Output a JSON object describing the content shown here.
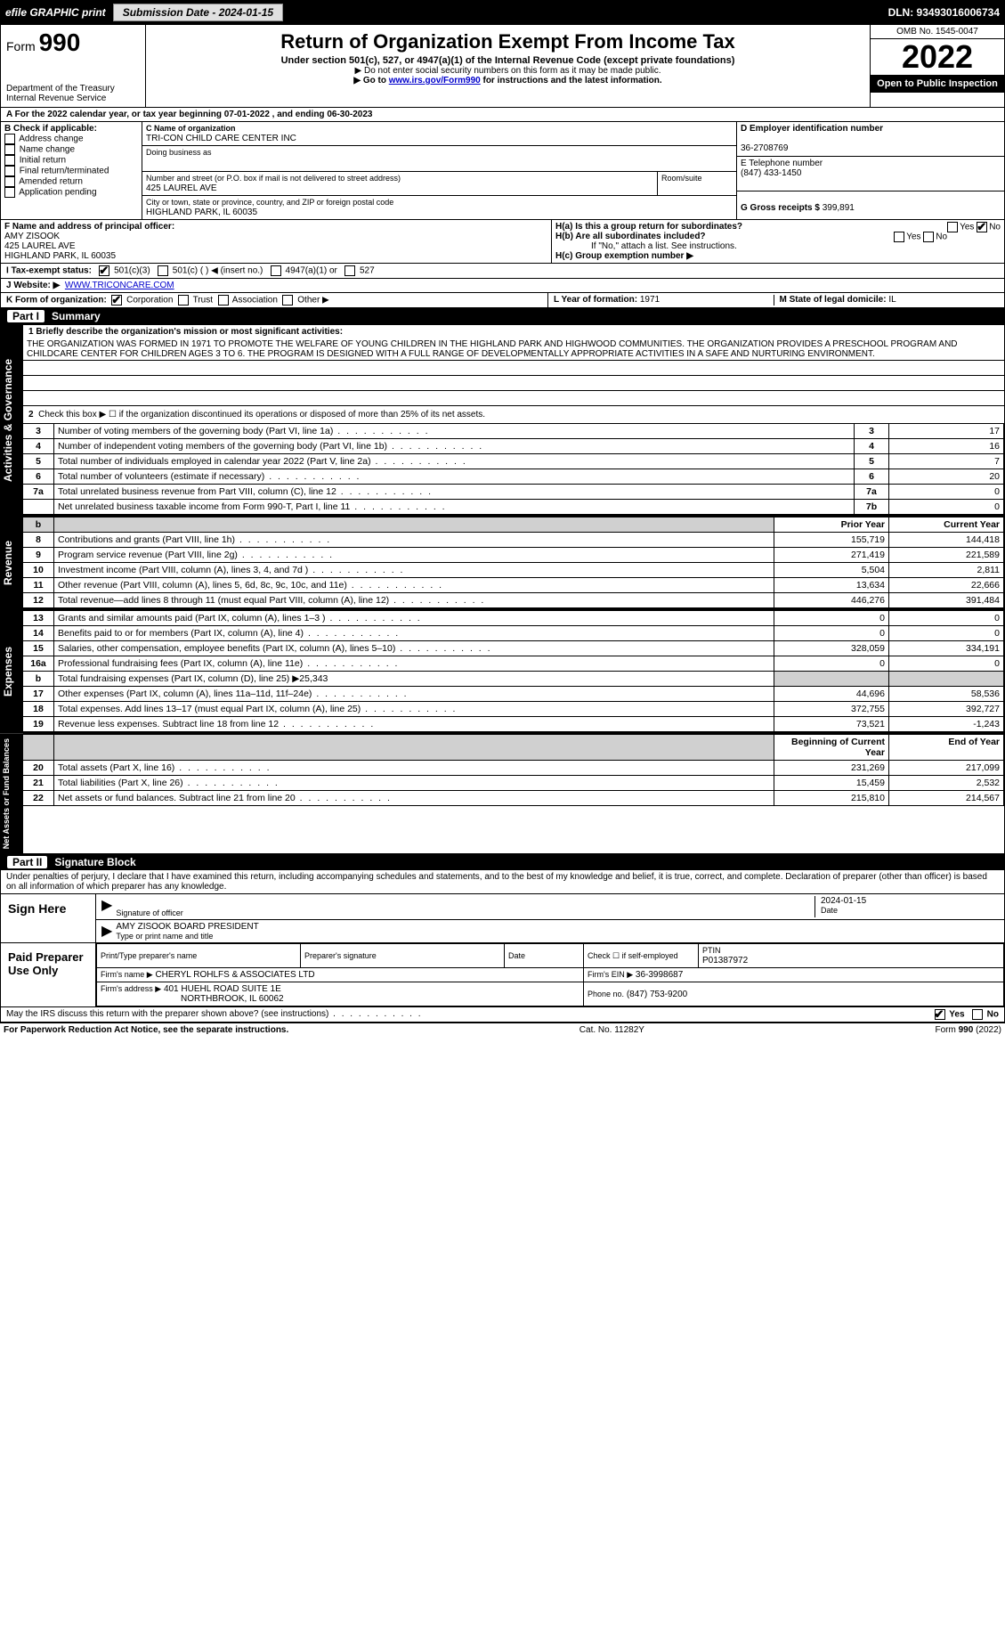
{
  "topbar": {
    "efile_label": "efile GRAPHIC print",
    "submission_label": "Submission Date - 2024-01-15",
    "dln_label": "DLN: 93493016006734"
  },
  "header": {
    "form_label": "Form",
    "form_number": "990",
    "dept": "Department of the Treasury",
    "irs": "Internal Revenue Service",
    "title": "Return of Organization Exempt From Income Tax",
    "subtitle": "Under section 501(c), 527, or 4947(a)(1) of the Internal Revenue Code (except private foundations)",
    "note1": "▶ Do not enter social security numbers on this form as it may be made public.",
    "note2_pre": "▶ Go to ",
    "note2_link": "www.irs.gov/Form990",
    "note2_post": " for instructions and the latest information.",
    "omb": "OMB No. 1545-0047",
    "year": "2022",
    "open": "Open to Public Inspection"
  },
  "period": {
    "line": "A For the 2022 calendar year, or tax year beginning 07-01-2022    , and ending 06-30-2023"
  },
  "blockB": {
    "label": "B Check if applicable:",
    "opts": [
      "Address change",
      "Name change",
      "Initial return",
      "Final return/terminated",
      "Amended return",
      "Application pending"
    ]
  },
  "blockC": {
    "label": "C Name of organization",
    "name": "TRI-CON CHILD CARE CENTER INC",
    "dba_label": "Doing business as",
    "dba": "",
    "addr_label": "Number and street (or P.O. box if mail is not delivered to street address)",
    "room_label": "Room/suite",
    "addr": "425 LAUREL AVE",
    "city_label": "City or town, state or province, country, and ZIP or foreign postal code",
    "city": "HIGHLAND PARK, IL  60035"
  },
  "blockD": {
    "label": "D Employer identification number",
    "ein": "36-2708769"
  },
  "blockE": {
    "label": "E Telephone number",
    "phone": "(847) 433-1450"
  },
  "blockG": {
    "label": "G Gross receipts $",
    "val": "399,891"
  },
  "blockF": {
    "label": "F Name and address of principal officer:",
    "name": "AMY ZISOOK",
    "addr1": "425 LAUREL AVE",
    "addr2": "HIGHLAND PARK, IL  60035"
  },
  "blockH": {
    "ha": "H(a)  Is this a group return for subordinates?",
    "hb": "H(b)  Are all subordinates included?",
    "hb_note": "If \"No,\" attach a list. See instructions.",
    "hc": "H(c)  Group exemption number ▶",
    "yes": "Yes",
    "no": "No"
  },
  "blockI": {
    "label": "I   Tax-exempt status:",
    "opts": [
      "501(c)(3)",
      "501(c) (  ) ◀ (insert no.)",
      "4947(a)(1) or",
      "527"
    ]
  },
  "blockJ": {
    "label": "J  Website: ▶",
    "val": "WWW.TRICONCARE.COM"
  },
  "blockK": {
    "label": "K Form of organization:",
    "opts": [
      "Corporation",
      "Trust",
      "Association",
      "Other ▶"
    ]
  },
  "blockL": {
    "label": "L Year of formation:",
    "val": "1971"
  },
  "blockM": {
    "label": "M State of legal domicile:",
    "val": "IL"
  },
  "part1": {
    "title": "Part I",
    "heading": "Summary"
  },
  "gov": {
    "label": "Activities & Governance",
    "line1_label": "1  Briefly describe the organization's mission or most significant activities:",
    "mission": "THE ORGANIZATION WAS FORMED IN 1971 TO PROMOTE THE WELFARE OF YOUNG CHILDREN IN THE HIGHLAND PARK AND HIGHWOOD COMMUNITIES. THE ORGANIZATION PROVIDES A PRESCHOOL PROGRAM AND CHILDCARE CENTER FOR CHILDREN AGES 3 TO 6. THE PROGRAM IS DESIGNED WITH A FULL RANGE OF DEVELOPMENTALLY APPROPRIATE ACTIVITIES IN A SAFE AND NURTURING ENVIRONMENT.",
    "line2": "Check this box ▶ ☐  if the organization discontinued its operations or disposed of more than 25% of its net assets.",
    "rows": [
      {
        "n": "3",
        "d": "Number of voting members of the governing body (Part VI, line 1a)",
        "b": "3",
        "v": "17"
      },
      {
        "n": "4",
        "d": "Number of independent voting members of the governing body (Part VI, line 1b)",
        "b": "4",
        "v": "16"
      },
      {
        "n": "5",
        "d": "Total number of individuals employed in calendar year 2022 (Part V, line 2a)",
        "b": "5",
        "v": "7"
      },
      {
        "n": "6",
        "d": "Total number of volunteers (estimate if necessary)",
        "b": "6",
        "v": "20"
      },
      {
        "n": "7a",
        "d": "Total unrelated business revenue from Part VIII, column (C), line 12",
        "b": "7a",
        "v": "0"
      },
      {
        "n": "",
        "d": "Net unrelated business taxable income from Form 990-T, Part I, line 11",
        "b": "7b",
        "v": "0"
      }
    ]
  },
  "rev": {
    "label": "Revenue",
    "head_prior": "Prior Year",
    "head_curr": "Current Year",
    "rows": [
      {
        "n": "8",
        "d": "Contributions and grants (Part VIII, line 1h)",
        "p": "155,719",
        "c": "144,418"
      },
      {
        "n": "9",
        "d": "Program service revenue (Part VIII, line 2g)",
        "p": "271,419",
        "c": "221,589"
      },
      {
        "n": "10",
        "d": "Investment income (Part VIII, column (A), lines 3, 4, and 7d )",
        "p": "5,504",
        "c": "2,811"
      },
      {
        "n": "11",
        "d": "Other revenue (Part VIII, column (A), lines 5, 6d, 8c, 9c, 10c, and 11e)",
        "p": "13,634",
        "c": "22,666"
      },
      {
        "n": "12",
        "d": "Total revenue—add lines 8 through 11 (must equal Part VIII, column (A), line 12)",
        "p": "446,276",
        "c": "391,484"
      }
    ]
  },
  "exp": {
    "label": "Expenses",
    "rows": [
      {
        "n": "13",
        "d": "Grants and similar amounts paid (Part IX, column (A), lines 1–3 )",
        "p": "0",
        "c": "0"
      },
      {
        "n": "14",
        "d": "Benefits paid to or for members (Part IX, column (A), line 4)",
        "p": "0",
        "c": "0"
      },
      {
        "n": "15",
        "d": "Salaries, other compensation, employee benefits (Part IX, column (A), lines 5–10)",
        "p": "328,059",
        "c": "334,191"
      },
      {
        "n": "16a",
        "d": "Professional fundraising fees (Part IX, column (A), line 11e)",
        "p": "0",
        "c": "0"
      },
      {
        "n": "b",
        "d": "Total fundraising expenses (Part IX, column (D), line 25) ▶25,343",
        "p": "",
        "c": "",
        "shade": true
      },
      {
        "n": "17",
        "d": "Other expenses (Part IX, column (A), lines 11a–11d, 11f–24e)",
        "p": "44,696",
        "c": "58,536"
      },
      {
        "n": "18",
        "d": "Total expenses. Add lines 13–17 (must equal Part IX, column (A), line 25)",
        "p": "372,755",
        "c": "392,727"
      },
      {
        "n": "19",
        "d": "Revenue less expenses. Subtract line 18 from line 12",
        "p": "73,521",
        "c": "-1,243"
      }
    ]
  },
  "net": {
    "label": "Net Assets or Fund Balances",
    "head_beg": "Beginning of Current Year",
    "head_end": "End of Year",
    "rows": [
      {
        "n": "20",
        "d": "Total assets (Part X, line 16)",
        "p": "231,269",
        "c": "217,099"
      },
      {
        "n": "21",
        "d": "Total liabilities (Part X, line 26)",
        "p": "15,459",
        "c": "2,532"
      },
      {
        "n": "22",
        "d": "Net assets or fund balances. Subtract line 21 from line 20",
        "p": "215,810",
        "c": "214,567"
      }
    ]
  },
  "part2": {
    "title": "Part II",
    "heading": "Signature Block",
    "penalty": "Under penalties of perjury, I declare that I have examined this return, including accompanying schedules and statements, and to the best of my knowledge and belief, it is true, correct, and complete. Declaration of preparer (other than officer) is based on all information of which preparer has any knowledge."
  },
  "sign": {
    "label": "Sign Here",
    "sig_label": "Signature of officer",
    "date_label": "Date",
    "date": "2024-01-15",
    "name": "AMY ZISOOK  BOARD PRESIDENT",
    "name_label": "Type or print name and title"
  },
  "prep": {
    "label": "Paid Preparer Use Only",
    "h1": "Print/Type preparer's name",
    "h2": "Preparer's signature",
    "h3": "Date",
    "h4": "Check ☐ if self-employed",
    "h5": "PTIN",
    "ptin": "P01387972",
    "firm_label": "Firm's name    ▶",
    "firm": "CHERYL ROHLFS & ASSOCIATES LTD",
    "ein_label": "Firm's EIN ▶",
    "ein": "36-3998687",
    "addr_label": "Firm's address ▶",
    "addr1": "401 HUEHL ROAD SUITE 1E",
    "addr2": "NORTHBROOK, IL  60062",
    "phone_label": "Phone no.",
    "phone": "(847) 753-9200"
  },
  "discuss": {
    "q": "May the IRS discuss this return with the preparer shown above? (see instructions)",
    "yes": "Yes",
    "no": "No"
  },
  "footer": {
    "left": "For Paperwork Reduction Act Notice, see the separate instructions.",
    "mid": "Cat. No. 11282Y",
    "right": "Form 990 (2022)"
  }
}
